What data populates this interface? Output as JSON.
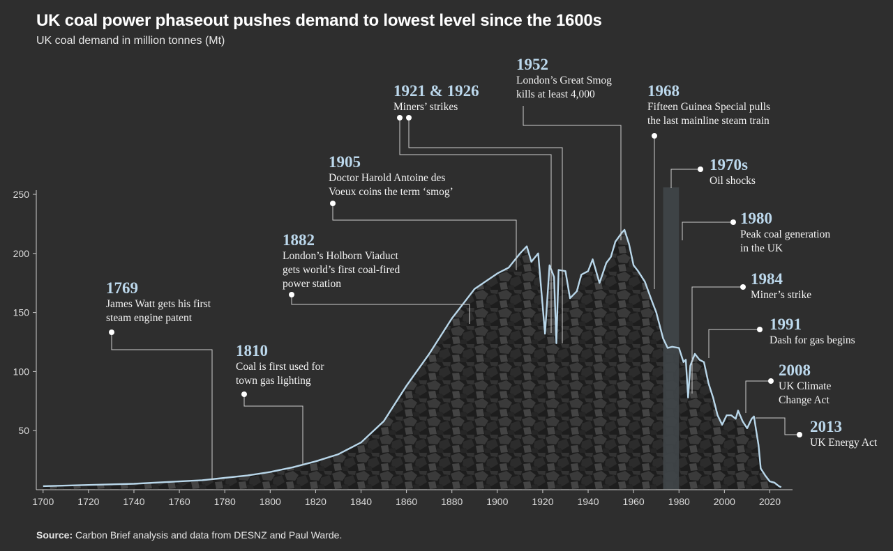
{
  "chart_data": {
    "type": "area",
    "title": "UK coal power phaseout pushes demand to lowest level since the 1600s",
    "subtitle": "UK coal demand in million tonnes (Mt)",
    "xlabel": "",
    "ylabel": "",
    "xlim": [
      1697,
      2030
    ],
    "ylim": [
      0,
      250
    ],
    "x_ticks": [
      1700,
      1720,
      1740,
      1760,
      1780,
      1800,
      1820,
      1840,
      1860,
      1880,
      1900,
      1920,
      1940,
      1960,
      1980,
      2000,
      2020
    ],
    "y_ticks": [
      50,
      100,
      150,
      200,
      250
    ],
    "grid": false,
    "colors": {
      "line": "#b9d7ea",
      "area": "#1f1f1f",
      "background": "#2e2e2e",
      "highlight": "#3f4448"
    },
    "series": [
      {
        "values": [
          [
            1700,
            3
          ],
          [
            1720,
            4
          ],
          [
            1740,
            5
          ],
          [
            1760,
            7
          ],
          [
            1770,
            8
          ],
          [
            1780,
            10
          ],
          [
            1790,
            12
          ],
          [
            1800,
            15
          ],
          [
            1810,
            19
          ],
          [
            1820,
            24
          ],
          [
            1830,
            30
          ],
          [
            1840,
            40
          ],
          [
            1850,
            58
          ],
          [
            1860,
            88
          ],
          [
            1870,
            115
          ],
          [
            1880,
            145
          ],
          [
            1890,
            170
          ],
          [
            1900,
            183
          ],
          [
            1905,
            188
          ],
          [
            1910,
            200
          ],
          [
            1913,
            206
          ],
          [
            1915,
            193
          ],
          [
            1918,
            200
          ],
          [
            1921,
            132
          ],
          [
            1923,
            190
          ],
          [
            1925,
            180
          ],
          [
            1926,
            124
          ],
          [
            1927,
            186
          ],
          [
            1930,
            185
          ],
          [
            1932,
            162
          ],
          [
            1935,
            168
          ],
          [
            1937,
            182
          ],
          [
            1940,
            185
          ],
          [
            1942,
            195
          ],
          [
            1945,
            175
          ],
          [
            1948,
            192
          ],
          [
            1950,
            197
          ],
          [
            1952,
            210
          ],
          [
            1955,
            218
          ],
          [
            1956,
            220
          ],
          [
            1958,
            208
          ],
          [
            1960,
            190
          ],
          [
            1962,
            185
          ],
          [
            1965,
            176
          ],
          [
            1968,
            160
          ],
          [
            1970,
            150
          ],
          [
            1973,
            128
          ],
          [
            1975,
            120
          ],
          [
            1977,
            121
          ],
          [
            1980,
            120
          ],
          [
            1982,
            108
          ],
          [
            1983,
            110
          ],
          [
            1984,
            78
          ],
          [
            1985,
            105
          ],
          [
            1987,
            115
          ],
          [
            1989,
            110
          ],
          [
            1991,
            108
          ],
          [
            1993,
            90
          ],
          [
            1995,
            78
          ],
          [
            1997,
            63
          ],
          [
            1999,
            55
          ],
          [
            2001,
            63
          ],
          [
            2003,
            63
          ],
          [
            2005,
            60
          ],
          [
            2006,
            67
          ],
          [
            2008,
            58
          ],
          [
            2010,
            52
          ],
          [
            2012,
            60
          ],
          [
            2013,
            62
          ],
          [
            2014,
            50
          ],
          [
            2015,
            38
          ],
          [
            2016,
            18
          ],
          [
            2018,
            12
          ],
          [
            2020,
            7
          ],
          [
            2022,
            6
          ],
          [
            2024,
            3
          ],
          [
            2025,
            2
          ]
        ]
      }
    ],
    "highlight_span": {
      "from": 1973,
      "to": 1980,
      "label": "1970s"
    },
    "annotations": [
      {
        "year": "1769",
        "lines": [
          "James Watt gets his first",
          "steam engine patent"
        ]
      },
      {
        "year": "1810",
        "lines": [
          "Coal is first used for",
          "town gas lighting"
        ]
      },
      {
        "year": "1882",
        "lines": [
          "London’s Holborn Viaduct",
          "gets world’s first coal-fired",
          "power station"
        ]
      },
      {
        "year": "1905",
        "lines": [
          "Doctor Harold Antoine des",
          "Voeux coins the term ‘smog’"
        ]
      },
      {
        "year": "1921 & 1926",
        "lines": [
          "Miners’ strikes"
        ]
      },
      {
        "year": "1952",
        "lines": [
          "London’s Great Smog",
          "kills at least 4,000"
        ]
      },
      {
        "year": "1968",
        "lines": [
          "Fifteen Guinea Special pulls",
          "the last mainline steam train"
        ]
      },
      {
        "year": "1970s",
        "lines": [
          "Oil shocks"
        ]
      },
      {
        "year": "1980",
        "lines": [
          "Peak coal generation",
          "in the UK"
        ]
      },
      {
        "year": "1984",
        "lines": [
          "Miner’s strike"
        ]
      },
      {
        "year": "1991",
        "lines": [
          "Dash for gas begins"
        ]
      },
      {
        "year": "2008",
        "lines": [
          "UK Climate",
          "Change Act"
        ]
      },
      {
        "year": "2013",
        "lines": [
          "UK Energy Act"
        ]
      }
    ]
  },
  "source": {
    "label": "Source:",
    "text": "Carbon Brief analysis and data from DESNZ and Paul Warde."
  }
}
